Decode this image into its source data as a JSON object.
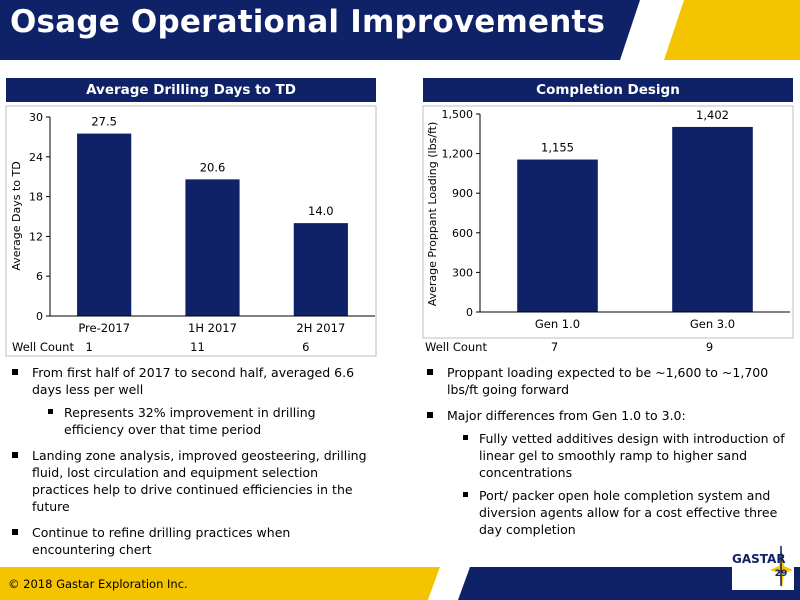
{
  "header": {
    "title": "Osage Operational Improvements"
  },
  "left_panel": {
    "title": "Average Drilling Days to TD",
    "well_count_label": "Well Count",
    "well_counts": [
      "1",
      "11",
      "6"
    ]
  },
  "right_panel": {
    "title": "Completion Design",
    "well_count_label": "Well Count",
    "well_counts": [
      "7",
      "9"
    ]
  },
  "chart_data": [
    {
      "type": "bar",
      "title": "Average Drilling Days to TD",
      "categories": [
        "Pre-2017",
        "1H 2017",
        "2H 2017"
      ],
      "values": [
        27.5,
        20.6,
        14.0
      ],
      "data_labels": [
        "27.5",
        "20.6",
        "14.0"
      ],
      "ylabel": "Average Days to TD",
      "ylim": [
        0,
        30
      ],
      "yticks": [
        0,
        6,
        12,
        18,
        24,
        30
      ],
      "ytick_labels": [
        "0",
        "6",
        "12",
        "18",
        "24",
        "30"
      ],
      "grid": false,
      "bar_color": "#0f2167"
    },
    {
      "type": "bar",
      "title": "Completion Design",
      "categories": [
        "Gen 1.0",
        "Gen 3.0"
      ],
      "values": [
        1155,
        1402
      ],
      "data_labels": [
        "1,155",
        "1,402"
      ],
      "ylabel": "Average Proppant Loading (lbs/ft)",
      "ylim": [
        0,
        1500
      ],
      "yticks": [
        0,
        300,
        600,
        900,
        1200,
        1500
      ],
      "ytick_labels": [
        "0",
        "300",
        "600",
        "900",
        "1,200",
        "1,500"
      ],
      "grid": false,
      "bar_color": "#0f2167"
    }
  ],
  "left_bullets": [
    {
      "level": 1,
      "text": "From first half of 2017 to second half, averaged 6.6 days less per well"
    },
    {
      "level": 2,
      "text": "Represents 32% improvement in drilling efficiency over that time period"
    },
    {
      "level": 1,
      "text": "Landing zone analysis, improved geosteering, drilling fluid, lost circulation and equipment selection practices help to drive continued efficiencies in the future"
    },
    {
      "level": 1,
      "text": "Continue to refine drilling practices when encountering chert"
    }
  ],
  "right_bullets": [
    {
      "level": 1,
      "text": "Proppant loading expected to be ~1,600 to ~1,700 lbs/ft going forward"
    },
    {
      "level": 1,
      "text": "Major differences from Gen 1.0 to 3.0:"
    },
    {
      "level": 2,
      "text": "Fully vetted additives design with introduction of linear gel to smoothly ramp to higher sand concentrations"
    },
    {
      "level": 2,
      "text": "Port/ packer open hole completion system and diversion agents allow for a cost effective three day completion"
    }
  ],
  "footer": {
    "copyright": "© 2018 Gastar Exploration Inc.",
    "logo_text": "GASTAR",
    "page_number": "29"
  },
  "colors": {
    "navy": "#0f2167",
    "gold": "#f5c400"
  }
}
